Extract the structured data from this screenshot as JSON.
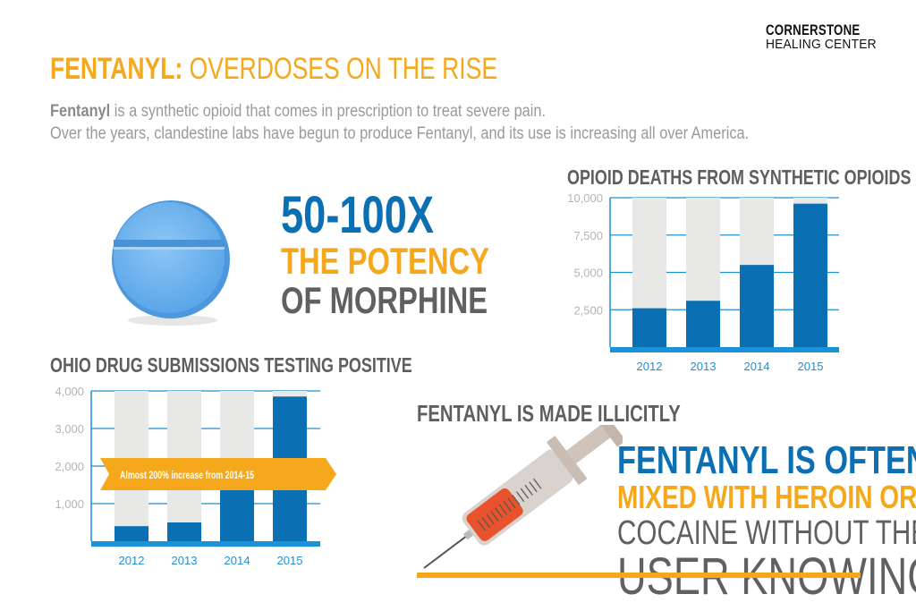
{
  "logo": {
    "line1": "CORNERSTONE",
    "line2": "HEALING CENTER"
  },
  "header": {
    "title_bold": "FENTANYL:",
    "title_rest": " OVERDOSES ON THE RISE"
  },
  "intro": {
    "bold": "Fentanyl",
    "line1_rest": " is a synthetic opioid that comes in prescription to treat severe pain.",
    "line2": "Over the years, clandestine labs have begun to produce Fentanyl, and its use is increasing all over America."
  },
  "potency": {
    "line1": "50-100X",
    "line2": "THE POTENCY",
    "line3": "OF MORPHINE"
  },
  "illicit": {
    "heading": "FENTANYL IS MADE ILLICITLY",
    "line1": "FENTANYL IS OFTEN",
    "line2": "MIXED WITH HEROIN OR",
    "line3": "COCAINE WITHOUT THE",
    "line4": "USER KNOWING"
  },
  "colors": {
    "blue": "#0a6fb3",
    "orange": "#f5a81c",
    "gray": "#606060",
    "track": "#e8e8e6",
    "axis": "#1f8fd1"
  },
  "chart_data": [
    {
      "type": "bar",
      "title": "OPIOID DEATHS FROM SYNTHETIC OPIOIDS",
      "categories": [
        "2012",
        "2013",
        "2014",
        "2015"
      ],
      "values": [
        2600,
        3100,
        5500,
        9600
      ],
      "yticks": [
        2500,
        5000,
        7500,
        10000
      ],
      "ytick_labels": [
        "2,500",
        "5,000",
        "7,500",
        "10,000"
      ],
      "ylim": [
        0,
        10000
      ],
      "xlabel": "",
      "ylabel": "",
      "grid": true
    },
    {
      "type": "bar",
      "title": "OHIO DRUG SUBMISSIONS TESTING POSITIVE",
      "categories": [
        "2012",
        "2013",
        "2014",
        "2015"
      ],
      "values": [
        400,
        500,
        1700,
        3850
      ],
      "yticks": [
        1000,
        2000,
        3000,
        4000
      ],
      "ytick_labels": [
        "1,000",
        "2,000",
        "3,000",
        "4,000"
      ],
      "ylim": [
        0,
        4000
      ],
      "annotation": "Almost 200% increase from 2014-15",
      "xlabel": "",
      "ylabel": "",
      "grid": true
    }
  ]
}
